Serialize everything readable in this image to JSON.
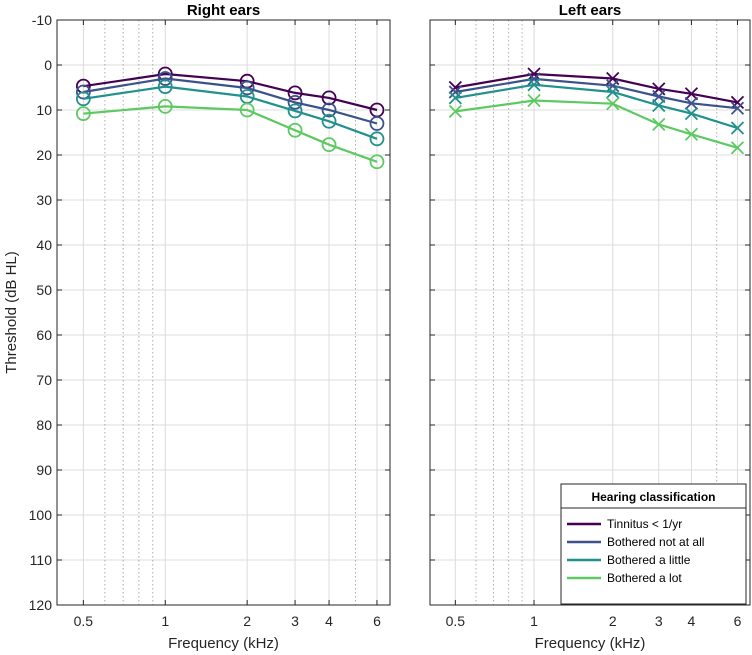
{
  "chart_data": {
    "type": "line",
    "y_axis": {
      "label": "Threshold (dB HL)",
      "range": [
        -10,
        120
      ],
      "reversed": true,
      "ticks": [
        -10,
        0,
        10,
        20,
        30,
        40,
        50,
        60,
        70,
        80,
        90,
        100,
        110,
        120
      ]
    },
    "x_axis": {
      "label": "Frequency (kHz)",
      "scale": "log",
      "range": [
        0.4,
        6.7
      ],
      "ticks": [
        0.5,
        1,
        2,
        3,
        4,
        6
      ],
      "tick_labels": [
        "0.5",
        "1",
        "2",
        "3",
        "4",
        "6"
      ],
      "minor_gridlines": [
        0.6,
        0.7,
        0.8,
        0.9,
        5
      ]
    },
    "frequencies": [
      0.5,
      1,
      2,
      3,
      4,
      6
    ],
    "legend": {
      "title": "Hearing classification",
      "placement": "bottom-right of right panel"
    },
    "series_colors": {
      "Tinnitus < 1/yr": "#440154",
      "Bothered not at all": "#3b528b",
      "Bothered a little": "#21918c",
      "Bothered a lot": "#5ec962"
    },
    "panels": [
      {
        "title": "Right ears",
        "marker": "circle",
        "series": [
          {
            "name": "Tinnitus < 1/yr",
            "values": [
              4.7,
              2.0,
              3.6,
              6.2,
              7.3,
              10.0
            ]
          },
          {
            "name": "Bothered not at all",
            "values": [
              6.0,
              3.0,
              5.1,
              8.3,
              10.0,
              13.0
            ]
          },
          {
            "name": "Bothered a little",
            "values": [
              7.5,
              4.8,
              7.0,
              10.2,
              12.5,
              16.4
            ]
          },
          {
            "name": "Bothered a lot",
            "values": [
              10.8,
              9.2,
              10.0,
              14.5,
              17.7,
              21.5
            ]
          }
        ]
      },
      {
        "title": "Left ears",
        "marker": "x",
        "series": [
          {
            "name": "Tinnitus < 1/yr",
            "values": [
              5.0,
              2.0,
              3.0,
              5.3,
              6.4,
              8.3
            ]
          },
          {
            "name": "Bothered not at all",
            "values": [
              6.0,
              3.1,
              4.6,
              7.0,
              8.5,
              9.6
            ]
          },
          {
            "name": "Bothered a little",
            "values": [
              7.3,
              4.4,
              6.0,
              9.0,
              10.8,
              14.0
            ]
          },
          {
            "name": "Bothered a lot",
            "values": [
              10.3,
              7.9,
              8.6,
              13.2,
              15.4,
              18.4
            ]
          }
        ]
      }
    ]
  }
}
